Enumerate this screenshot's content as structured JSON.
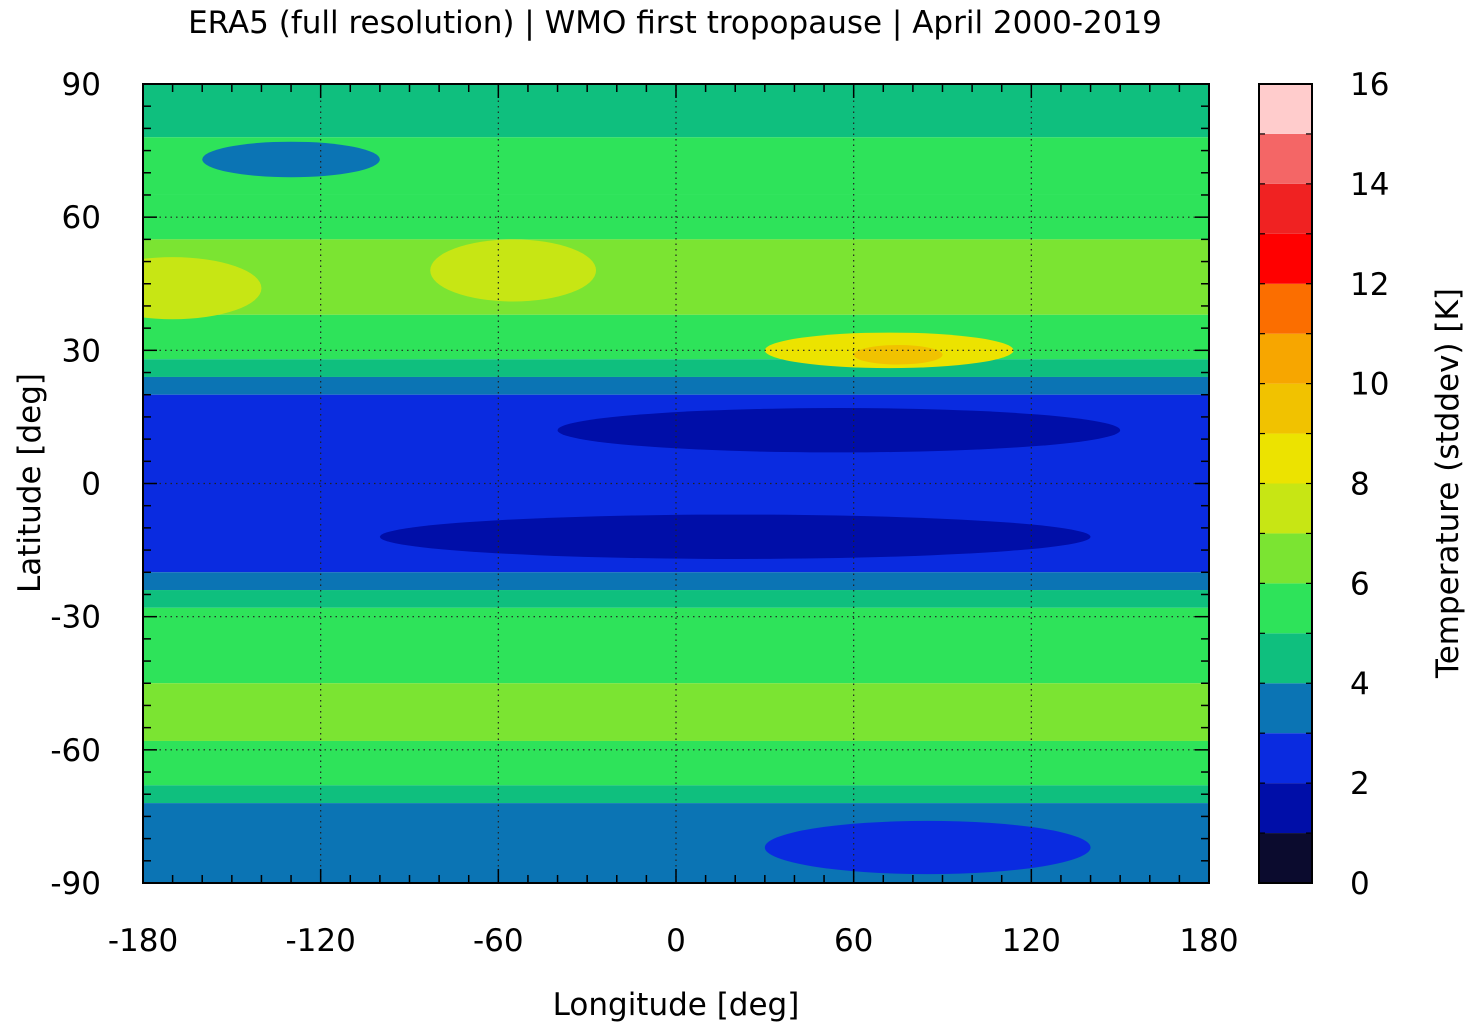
{
  "chart_data": {
    "type": "heatmap",
    "title": "ERA5 (full resolution) | WMO first tropopause | April 2000-2019",
    "xlabel": "Longitude [deg]",
    "ylabel": "Latitude [deg]",
    "colorbar_label": "Temperature (stddev) [K]",
    "xlim": [
      -180,
      180
    ],
    "ylim": [
      -90,
      90
    ],
    "xticks": [
      -180,
      -120,
      -60,
      0,
      60,
      120,
      180
    ],
    "xtick_labels": [
      "-180",
      "-120",
      "-60",
      "0",
      "60",
      "120",
      "180"
    ],
    "yticks": [
      90,
      60,
      30,
      0,
      -30,
      -60,
      -90
    ],
    "ytick_labels": [
      "90",
      "60",
      "30",
      "0",
      "-30",
      "-60",
      "-90"
    ],
    "grid": true,
    "colorbar": {
      "min": 0,
      "max": 16,
      "ticks": [
        16,
        14,
        12,
        10,
        8,
        6,
        4,
        2,
        0
      ],
      "tick_labels": [
        "16",
        "14",
        "12",
        "10",
        "8",
        "6",
        "4",
        "2",
        "0"
      ],
      "levels": [
        {
          "from": 0,
          "to": 1,
          "color": "#0b0b2e"
        },
        {
          "from": 1,
          "to": 2,
          "color": "#000ea8"
        },
        {
          "from": 2,
          "to": 3,
          "color": "#0a2be0"
        },
        {
          "from": 3,
          "to": 4,
          "color": "#0b74b4"
        },
        {
          "from": 4,
          "to": 5,
          "color": "#0fbf7e"
        },
        {
          "from": 5,
          "to": 6,
          "color": "#2ee35a"
        },
        {
          "from": 6,
          "to": 7,
          "color": "#7be432"
        },
        {
          "from": 7,
          "to": 8,
          "color": "#c7e614"
        },
        {
          "from": 8,
          "to": 9,
          "color": "#ece300"
        },
        {
          "from": 9,
          "to": 10,
          "color": "#f1c200"
        },
        {
          "from": 10,
          "to": 11,
          "color": "#f7a600"
        },
        {
          "from": 11,
          "to": 12,
          "color": "#fb6e00"
        },
        {
          "from": 12,
          "to": 13,
          "color": "#ff0000"
        },
        {
          "from": 13,
          "to": 14,
          "color": "#f02222"
        },
        {
          "from": 14,
          "to": 15,
          "color": "#f46666"
        },
        {
          "from": 15,
          "to": 16,
          "color": "#ffcccc"
        }
      ]
    },
    "zonal_bands": [
      {
        "lat_from": 78,
        "lat_to": 90,
        "value": 4.5
      },
      {
        "lat_from": 65,
        "lat_to": 78,
        "value": 5.0
      },
      {
        "lat_from": 55,
        "lat_to": 65,
        "value": 5.6
      },
      {
        "lat_from": 38,
        "lat_to": 55,
        "value": 6.4
      },
      {
        "lat_from": 28,
        "lat_to": 38,
        "value": 5.7
      },
      {
        "lat_from": 24,
        "lat_to": 28,
        "value": 4.5
      },
      {
        "lat_from": 20,
        "lat_to": 24,
        "value": 3.5
      },
      {
        "lat_from": -20,
        "lat_to": 20,
        "value": 2.5
      },
      {
        "lat_from": -24,
        "lat_to": -20,
        "value": 3.5
      },
      {
        "lat_from": -28,
        "lat_to": -24,
        "value": 4.5
      },
      {
        "lat_from": -45,
        "lat_to": -28,
        "value": 5.5
      },
      {
        "lat_from": -58,
        "lat_to": -45,
        "value": 6.5
      },
      {
        "lat_from": -68,
        "lat_to": -58,
        "value": 5.5
      },
      {
        "lat_from": -72,
        "lat_to": -68,
        "value": 4.5
      },
      {
        "lat_from": -90,
        "lat_to": -72,
        "value": 3.5
      }
    ],
    "features": [
      {
        "name": "tropical-minimum-north",
        "lon": 55,
        "lat": 12,
        "rx": 95,
        "ry": 5,
        "value": 1.5
      },
      {
        "name": "tropical-minimum-south",
        "lon": 20,
        "lat": -12,
        "rx": 120,
        "ry": 5,
        "value": 1.5
      },
      {
        "name": "subtropical-maximum-asia",
        "lon": 72,
        "lat": 30,
        "rx": 42,
        "ry": 4,
        "value": 8.5
      },
      {
        "name": "subtropical-maximum-asia-core",
        "lon": 75,
        "lat": 29,
        "rx": 15,
        "ry": 2.2,
        "value": 9.5
      },
      {
        "name": "midlatitude-maximum-atlantic",
        "lon": -55,
        "lat": 48,
        "rx": 28,
        "ry": 7,
        "value": 7.5
      },
      {
        "name": "midlatitude-maximum-pacific",
        "lon": -170,
        "lat": 44,
        "rx": 30,
        "ry": 7,
        "value": 7.5
      },
      {
        "name": "arctic-minimum",
        "lon": -130,
        "lat": 73,
        "rx": 30,
        "ry": 4,
        "value": 3.5
      },
      {
        "name": "antarctic-minimum",
        "lon": 85,
        "lat": -82,
        "rx": 55,
        "ry": 6,
        "value": 2.5
      }
    ]
  }
}
